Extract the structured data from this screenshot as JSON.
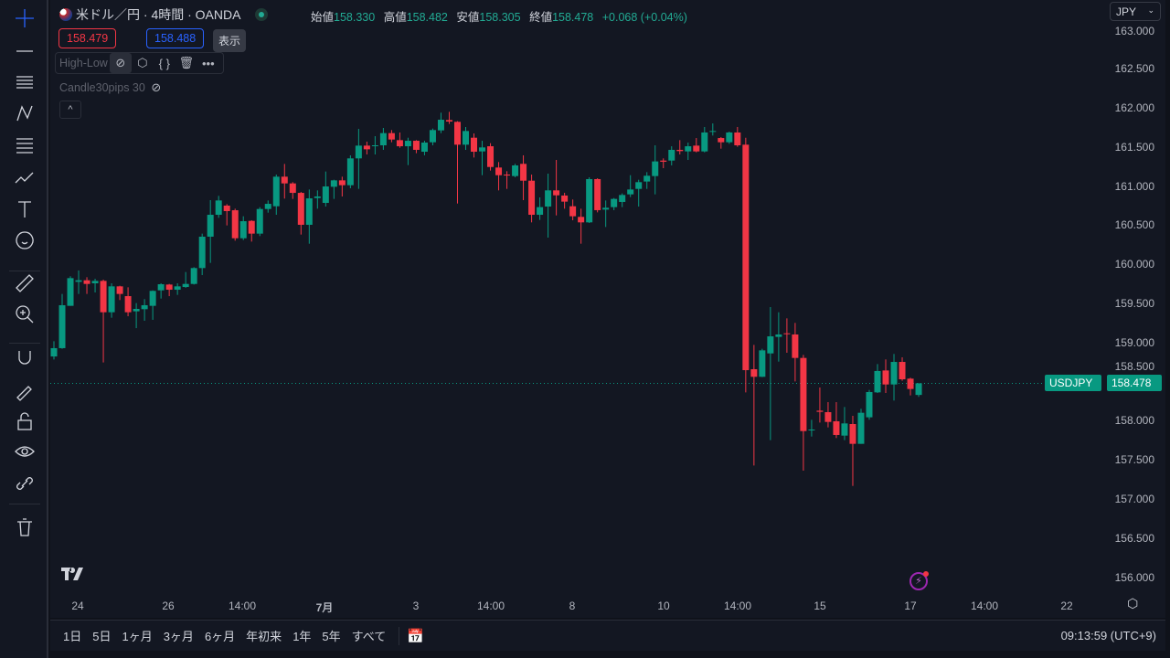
{
  "header": {
    "symbol_title": "米ドル／円 · 4時間 · OANDA",
    "open_label": "始値",
    "open": "158.330",
    "high_label": "高値",
    "high": "158.482",
    "low_label": "安値",
    "low": "158.305",
    "close_label": "終値",
    "close": "158.478",
    "change": "+0.068 (+0.04%)"
  },
  "bid_price": "158.479",
  "ask_price": "158.488",
  "tooltip": "表示",
  "indicators": [
    {
      "name": "High-Low"
    },
    {
      "name": "Candle30pips 30"
    }
  ],
  "currency": "JPY",
  "last_price_label": {
    "symbol": "USDJPY",
    "price": "158.478"
  },
  "price_axis": [
    "163.000",
    "162.500",
    "162.000",
    "161.500",
    "161.000",
    "160.500",
    "160.000",
    "159.500",
    "159.000",
    "158.500",
    "158.000",
    "157.500",
    "157.000",
    "156.500",
    "156.000"
  ],
  "time_axis": [
    "24",
    "26",
    "14:00",
    "7月",
    "3",
    "14:00",
    "8",
    "10",
    "14:00",
    "15",
    "17",
    "14:00",
    "22"
  ],
  "ranges": [
    "1日",
    "5日",
    "1ヶ月",
    "3ヶ月",
    "6ヶ月",
    "年初来",
    "1年",
    "5年",
    "すべて"
  ],
  "clock": "09:13:59 (UTC+9)",
  "colors": {
    "up": "#089981",
    "down": "#f23645",
    "background": "#131722",
    "accent": "#2962ff"
  },
  "tools": [
    "crosshair-icon",
    "trend-line-icon",
    "horizontal-lines-icon",
    "pattern-icon",
    "fib-icon",
    "forecast-icon",
    "text-icon",
    "emoji-icon",
    "ruler-icon",
    "zoom-in-icon",
    "magnet-icon",
    "lock-drawing-icon",
    "unlock-icon",
    "eye-icon",
    "link-icon",
    "trash-icon"
  ],
  "chart_data": {
    "type": "candlestick",
    "interval": "4時間",
    "ylim": [
      156.0,
      163.0
    ],
    "candles_ohlc": [
      [
        158.822,
        159.017,
        158.783,
        158.928
      ],
      [
        158.928,
        159.621,
        158.92,
        159.477
      ],
      [
        159.469,
        159.847,
        159.469,
        159.823
      ],
      [
        159.776,
        159.921,
        159.621,
        159.796
      ],
      [
        159.796,
        159.835,
        159.621,
        159.749
      ],
      [
        159.757,
        159.815,
        159.64,
        159.788
      ],
      [
        159.788,
        159.804,
        158.745,
        159.387
      ],
      [
        159.387,
        159.757,
        159.317,
        159.718
      ],
      [
        159.718,
        159.726,
        159.543,
        159.621
      ],
      [
        159.593,
        159.706,
        159.336,
        159.387
      ],
      [
        159.399,
        159.504,
        159.184,
        159.43
      ],
      [
        159.426,
        159.555,
        159.278,
        159.477
      ],
      [
        159.469,
        159.667,
        159.29,
        159.66
      ],
      [
        159.667,
        159.757,
        159.562,
        159.745
      ],
      [
        159.741,
        159.749,
        159.593,
        159.675
      ],
      [
        159.675,
        159.757,
        159.609,
        159.718
      ],
      [
        159.71,
        159.901,
        159.699,
        159.749
      ],
      [
        159.749,
        159.963,
        159.741,
        159.952
      ],
      [
        159.952,
        160.392,
        159.862,
        160.353
      ],
      [
        160.353,
        160.82,
        160.018,
        160.633
      ],
      [
        160.633,
        160.875,
        160.594,
        160.816
      ],
      [
        160.75,
        160.769,
        160.497,
        160.68
      ],
      [
        160.691,
        160.711,
        160.302,
        160.333
      ],
      [
        160.333,
        160.614,
        160.31,
        160.551
      ],
      [
        160.555,
        160.563,
        160.29,
        160.392
      ],
      [
        160.392,
        160.73,
        160.361,
        160.707
      ],
      [
        160.707,
        160.816,
        160.66,
        160.773
      ],
      [
        160.742,
        161.147,
        160.633,
        161.12
      ],
      [
        161.12,
        161.283,
        160.84,
        161.034
      ],
      [
        161.034,
        161.05,
        160.836,
        160.913
      ],
      [
        160.913,
        160.925,
        160.38,
        160.505
      ],
      [
        160.505,
        160.956,
        160.263,
        160.843
      ],
      [
        160.847,
        160.945,
        160.711,
        160.867
      ],
      [
        160.785,
        161.186,
        160.738,
        160.995
      ],
      [
        160.991,
        161.081,
        160.836,
        161.073
      ],
      [
        161.073,
        161.12,
        160.867,
        161.011
      ],
      [
        161.011,
        161.393,
        160.972,
        161.354
      ],
      [
        161.354,
        161.731,
        160.964,
        161.517
      ],
      [
        161.517,
        161.568,
        161.404,
        161.47
      ],
      [
        161.513,
        161.638,
        161.404,
        161.521
      ],
      [
        161.521,
        161.743,
        161.463,
        161.677
      ],
      [
        161.677,
        161.716,
        161.56,
        161.595
      ],
      [
        161.587,
        161.685,
        161.49,
        161.509
      ],
      [
        161.509,
        161.618,
        161.268,
        161.579
      ],
      [
        161.579,
        161.587,
        161.42,
        161.463
      ],
      [
        161.439,
        161.579,
        161.393,
        161.556
      ],
      [
        161.56,
        161.735,
        161.521,
        161.716
      ],
      [
        161.712,
        161.938,
        161.677,
        161.848
      ],
      [
        161.844,
        161.949,
        161.794,
        161.825
      ],
      [
        161.821,
        161.829,
        160.777,
        161.529
      ],
      [
        161.529,
        161.755,
        161.463,
        161.704
      ],
      [
        161.618,
        161.673,
        161.365,
        161.439
      ],
      [
        161.443,
        161.579,
        161.139,
        161.494
      ],
      [
        161.509,
        161.548,
        161.198,
        161.244
      ],
      [
        161.237,
        161.307,
        160.945,
        161.139
      ],
      [
        161.147,
        161.19,
        160.964,
        161.135
      ],
      [
        161.128,
        161.284,
        161.112,
        161.264
      ],
      [
        161.284,
        161.393,
        160.82,
        161.069
      ],
      [
        161.069,
        161.147,
        160.536,
        160.633
      ],
      [
        160.633,
        160.855,
        160.567,
        160.731
      ],
      [
        160.738,
        161.159,
        160.341,
        160.945
      ],
      [
        160.945,
        161.334,
        160.625,
        160.882
      ],
      [
        160.879,
        160.914,
        160.711,
        160.801
      ],
      [
        160.742,
        160.828,
        160.563,
        160.614
      ],
      [
        160.606,
        160.711,
        160.263,
        160.536
      ],
      [
        160.536,
        161.112,
        160.528,
        161.089
      ],
      [
        161.089,
        161.1,
        160.664,
        160.692
      ],
      [
        160.699,
        160.816,
        160.477,
        160.723
      ],
      [
        160.731,
        160.847,
        160.692,
        160.836
      ],
      [
        160.797,
        160.906,
        160.731,
        160.886
      ],
      [
        160.894,
        161.139,
        160.859,
        160.956
      ],
      [
        160.964,
        161.081,
        160.738,
        161.05
      ],
      [
        161.058,
        161.178,
        160.964,
        161.132
      ],
      [
        161.128,
        161.521,
        160.894,
        161.315
      ],
      [
        161.326,
        161.354,
        161.229,
        161.311
      ],
      [
        161.326,
        161.509,
        161.264,
        161.463
      ],
      [
        161.463,
        161.587,
        161.404,
        161.447
      ],
      [
        161.443,
        161.556,
        161.334,
        161.509
      ],
      [
        161.517,
        161.614,
        161.431,
        161.443
      ],
      [
        161.443,
        161.755,
        161.431,
        161.685
      ],
      [
        161.696,
        161.801,
        161.646,
        161.704
      ],
      [
        161.614,
        161.626,
        161.478,
        161.56
      ],
      [
        161.56,
        161.696,
        161.54,
        161.685
      ],
      [
        161.685,
        161.755,
        161.502,
        161.521
      ],
      [
        161.529,
        161.618,
        158.363,
        158.647
      ],
      [
        158.659,
        158.97,
        157.428,
        158.562
      ],
      [
        158.562,
        158.92,
        158.558,
        158.9
      ],
      [
        158.861,
        159.453,
        157.752,
        159.079
      ],
      [
        159.072,
        159.387,
        158.756,
        159.103
      ],
      [
        159.118,
        159.309,
        158.869,
        159.107
      ],
      [
        159.103,
        159.251,
        158.503,
        158.803
      ],
      [
        158.803,
        158.842,
        157.362,
        157.868
      ],
      [
        157.88,
        158.012,
        157.798,
        157.888
      ],
      [
        158.129,
        158.425,
        157.977,
        158.114
      ],
      [
        158.11,
        158.238,
        157.915,
        157.985
      ],
      [
        157.993,
        158.238,
        157.779,
        157.818
      ],
      [
        157.81,
        158.176,
        157.752,
        157.966
      ],
      [
        157.958,
        158.063,
        157.167,
        157.705
      ],
      [
        157.705,
        158.153,
        157.705,
        158.102
      ],
      [
        158.044,
        158.394,
        158.013,
        158.367
      ],
      [
        158.363,
        158.725,
        158.355,
        158.636
      ],
      [
        158.643,
        158.784,
        158.355,
        158.464
      ],
      [
        158.464,
        158.854,
        158.258,
        158.752
      ],
      [
        158.752,
        158.811,
        158.511,
        158.53
      ],
      [
        158.538,
        158.55,
        158.324,
        158.406
      ],
      [
        158.33,
        158.482,
        158.305,
        158.478
      ]
    ]
  }
}
